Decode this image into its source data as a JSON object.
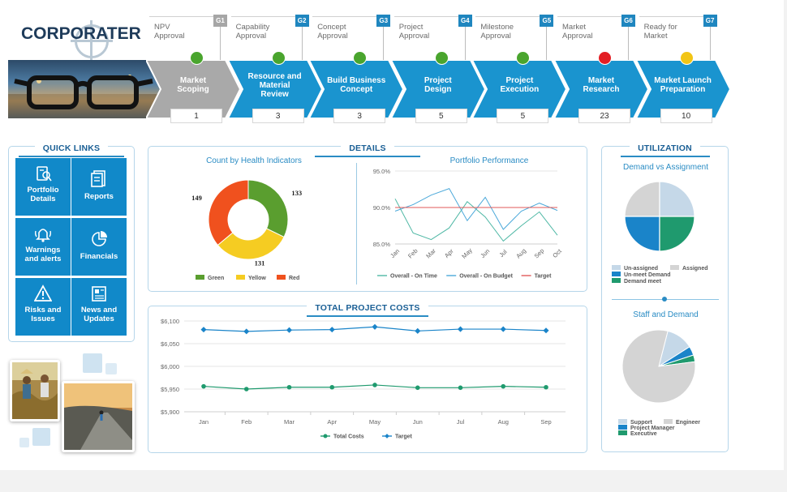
{
  "logo": {
    "text": "CORPORATER"
  },
  "gates": [
    {
      "code": "G1",
      "label": "NPV\nApproval",
      "color": "#a6a6a6",
      "status": "#4aa52e"
    },
    {
      "code": "G2",
      "label": "Capability\nApproval",
      "color": "#1f86bf",
      "status": "#4aa52e"
    },
    {
      "code": "G3",
      "label": "Concept\nApproval",
      "color": "#1f86bf",
      "status": "#4aa52e"
    },
    {
      "code": "G4",
      "label": "Project\nApproval",
      "color": "#1f86bf",
      "status": "#4aa52e"
    },
    {
      "code": "G5",
      "label": "Milestone\nApproval",
      "color": "#1f86bf",
      "status": "#4aa52e"
    },
    {
      "code": "G6",
      "label": "Market\nApproval",
      "color": "#1f86bf",
      "status": "#e31e24"
    },
    {
      "code": "G7",
      "label": "Ready for\nMarket",
      "color": "#1f86bf",
      "status": "#f2c515"
    }
  ],
  "stages": [
    {
      "name": "Market\nScoping",
      "count": "1",
      "color": "#a9a9a9"
    },
    {
      "name": "Resource and\nMaterial\nReview",
      "count": "3",
      "color": "#1a94cf"
    },
    {
      "name": "Build Business\nConcept",
      "count": "3",
      "color": "#1a94cf"
    },
    {
      "name": "Project\nDesign",
      "count": "5",
      "color": "#1a94cf"
    },
    {
      "name": "Project\nExecution",
      "count": "5",
      "color": "#1a94cf"
    },
    {
      "name": "Market\nResearch",
      "count": "23",
      "color": "#1a94cf"
    },
    {
      "name": "Market Launch\nPreparation",
      "count": "10",
      "color": "#1a94cf"
    }
  ],
  "quick_links": {
    "title": "QUICK LINKS",
    "items": [
      {
        "label": "Portfolio\nDetails",
        "icon": "portfolio-icon"
      },
      {
        "label": "Reports",
        "icon": "reports-icon"
      },
      {
        "label": "Warnings\nand alerts",
        "icon": "bell-icon"
      },
      {
        "label": "Financials",
        "icon": "pie-icon"
      },
      {
        "label": "Risks and\nIssues",
        "icon": "warning-icon"
      },
      {
        "label": "News and\nUpdates",
        "icon": "news-icon"
      }
    ]
  },
  "details": {
    "title": "DETAILS"
  },
  "utilization": {
    "title": "UTILIZATION"
  },
  "colors": {
    "accent": "#1a94cf",
    "panel_border": "#b6d6ea",
    "title": "#1a5f95"
  },
  "chart_data": [
    {
      "type": "pie",
      "title": "Count by Health Indicators",
      "donut": true,
      "labels": [
        "Green",
        "Yellow",
        "Red"
      ],
      "values": [
        133,
        131,
        149
      ],
      "colors": [
        "#5a9e2f",
        "#f5cc22",
        "#f0511e"
      ],
      "data_labels": [
        "133",
        "131",
        "149"
      ]
    },
    {
      "type": "line",
      "title": "Portfolio Performance",
      "categories": [
        "Jan",
        "Feb",
        "Mar",
        "Apr",
        "May",
        "Jun",
        "Jul",
        "Aug",
        "Sep",
        "Oct"
      ],
      "ylim": [
        85,
        95
      ],
      "yticks": [
        "85.0%",
        "90.0%",
        "95.0%"
      ],
      "series": [
        {
          "name": "Overall - On Time",
          "color": "#4fb8a5",
          "values": [
            91.2,
            86.5,
            85.6,
            87.2,
            90.8,
            88.7,
            85.4,
            87.5,
            89.4,
            86.2
          ]
        },
        {
          "name": "Overall - On Budget",
          "color": "#4ca9da",
          "values": [
            89.5,
            90.4,
            91.7,
            92.6,
            88.2,
            91.4,
            87.0,
            89.5,
            90.6,
            89.6
          ]
        },
        {
          "name": "Target",
          "color": "#e05a5a",
          "values": [
            90,
            90,
            90,
            90,
            90,
            90,
            90,
            90,
            90,
            90
          ]
        }
      ],
      "grid": true,
      "legend": "bottom"
    },
    {
      "type": "pie",
      "title": "Demand vs Assignment",
      "labels": [
        "Un-assigned",
        "Assigned",
        "Un-meet Demand",
        "Demand meet"
      ],
      "values": [
        25,
        25,
        25,
        25
      ],
      "colors": [
        "#c5d8e8",
        "#d4d4d4",
        "#1a84c9",
        "#1f9a6e"
      ]
    },
    {
      "type": "pie",
      "title": "Staff and Demand",
      "labels": [
        "Support",
        "Engineer",
        "Project Manager",
        "Executive"
      ],
      "values": [
        12,
        81,
        4,
        3
      ],
      "colors": [
        "#c5d8e8",
        "#d4d4d4",
        "#1a84c9",
        "#1f9a6e"
      ]
    },
    {
      "type": "line",
      "title": "TOTAL PROJECT COSTS",
      "categories": [
        "Jan",
        "Feb",
        "Mar",
        "Apr",
        "May",
        "Jun",
        "Jul",
        "Aug",
        "Sep"
      ],
      "ylim": [
        5900,
        6100
      ],
      "yticks": [
        "$5,900",
        "$5,950",
        "$6,000",
        "$6,050",
        "$6,100"
      ],
      "series": [
        {
          "name": "Total Costs",
          "color": "#1f9a6e",
          "values": [
            5956,
            5950,
            5954,
            5954,
            5959,
            5953,
            5953,
            5956,
            5954
          ]
        },
        {
          "name": "Target",
          "color": "#1a84c9",
          "values": [
            6081,
            6077,
            6080,
            6081,
            6087,
            6078,
            6082,
            6082,
            6079
          ]
        }
      ],
      "grid": true,
      "legend": "bottom"
    }
  ]
}
